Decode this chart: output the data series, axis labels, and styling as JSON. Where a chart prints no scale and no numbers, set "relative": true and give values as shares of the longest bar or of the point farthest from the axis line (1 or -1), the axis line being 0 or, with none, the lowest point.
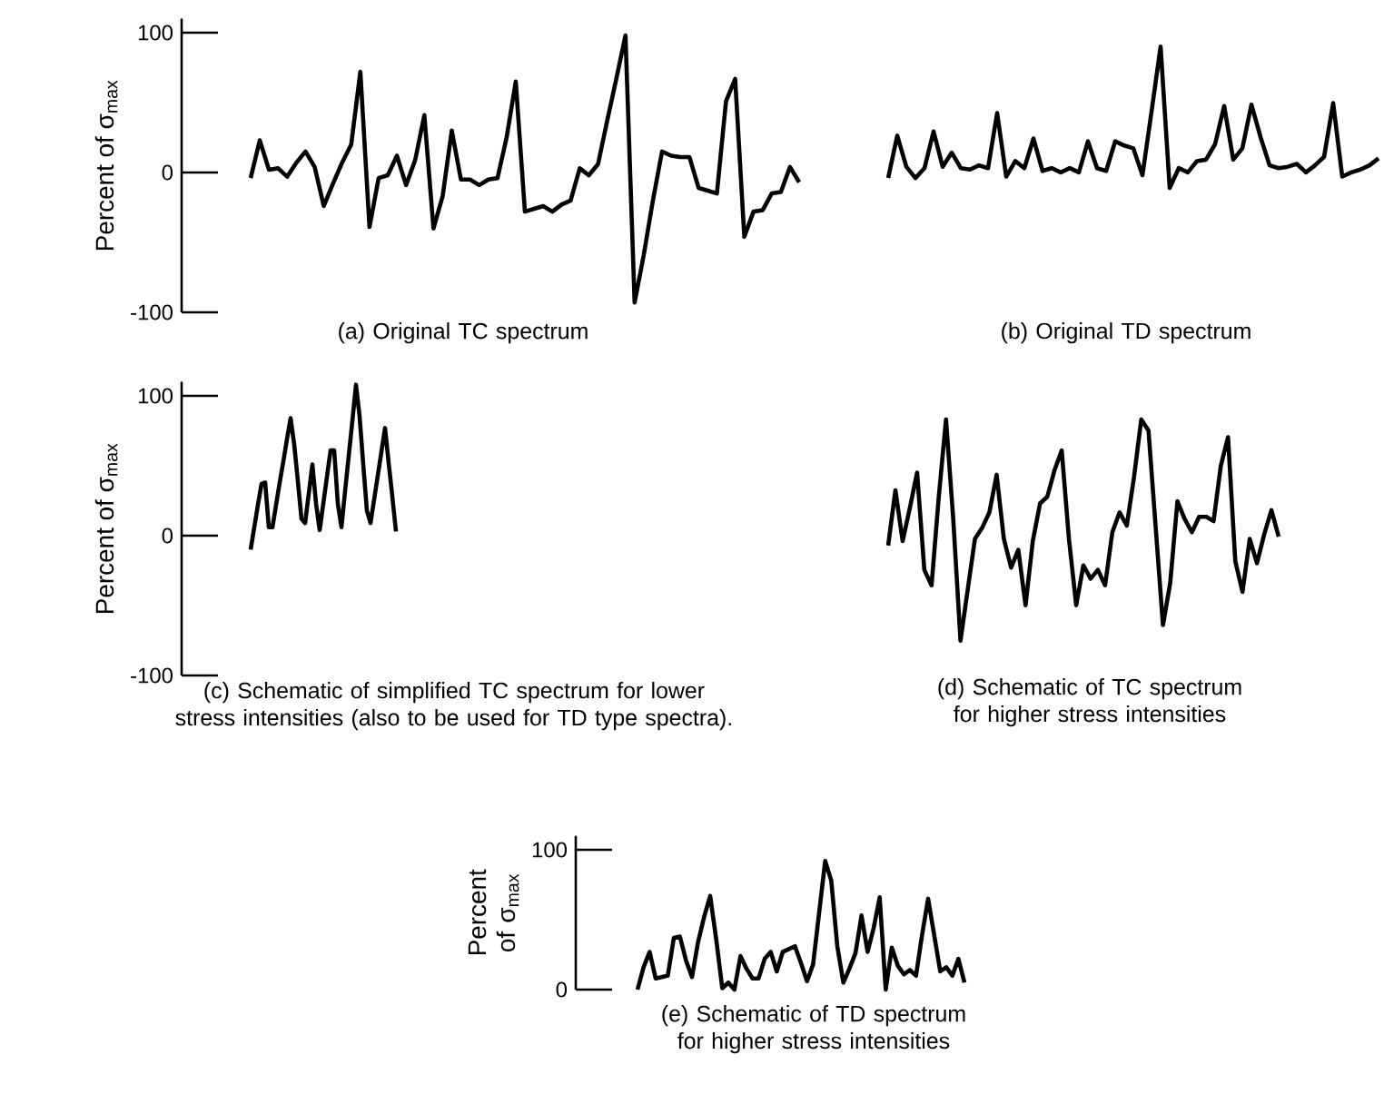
{
  "chart_data": [
    {
      "type": "line",
      "title": "(a) Original TC spectrum",
      "ylabel": "Percent of σ$_{max}$",
      "color": "#000000",
      "ylim": [
        -100,
        110
      ],
      "yticks": [
        -100,
        0,
        100
      ],
      "tick_labels": "y",
      "categories": [
        null,
        null,
        null,
        null,
        null,
        null,
        null,
        null,
        null,
        null,
        null,
        null,
        null,
        null,
        null,
        null,
        null,
        null,
        null,
        null,
        null,
        null,
        null,
        null,
        null,
        null,
        null,
        null,
        null,
        null,
        null,
        null,
        null,
        null,
        null,
        null,
        null,
        null,
        null,
        null,
        null,
        null,
        null,
        null,
        null,
        null,
        null,
        null,
        null,
        null,
        null,
        null,
        null,
        null,
        null,
        null,
        null,
        null,
        null,
        null,
        null
      ],
      "values": [
        -4,
        23,
        2,
        3,
        -3,
        7,
        15,
        4,
        -24,
        -8,
        7,
        20,
        72,
        -39,
        -4,
        -2,
        12,
        -9,
        9,
        41,
        -40,
        -17,
        30,
        -5,
        -5,
        -9,
        -5,
        -4,
        25,
        65,
        -28,
        -26,
        -24,
        -28,
        -23,
        -20,
        3,
        -2,
        6,
        37,
        67,
        98,
        -93,
        -59,
        -20,
        15,
        12,
        11,
        11,
        -11,
        -13,
        -15,
        51,
        67,
        -46,
        -28,
        -27,
        -15,
        -14,
        4,
        -7
      ]
    },
    {
      "type": "line",
      "title": "(b) Original TD spectrum",
      "color": "#000000",
      "relative": true,
      "categories": [
        null,
        null,
        null,
        null,
        null,
        null,
        null,
        null,
        null,
        null,
        null,
        null,
        null,
        null,
        null,
        null,
        null,
        null,
        null,
        null,
        null,
        null,
        null,
        null,
        null,
        null,
        null,
        null,
        null,
        null,
        null,
        null,
        null,
        null,
        null,
        null,
        null,
        null,
        null,
        null,
        null,
        null,
        null,
        null,
        null,
        null,
        null,
        null,
        null,
        null,
        null,
        null,
        null,
        null,
        null
      ],
      "values": [
        0.07,
        0.37,
        0.15,
        0.07,
        0.14,
        0.4,
        0.15,
        0.25,
        0.14,
        0.13,
        0.16,
        0.14,
        0.53,
        0.08,
        0.19,
        0.14,
        0.35,
        0.12,
        0.14,
        0.11,
        0.14,
        0.11,
        0.33,
        0.14,
        0.12,
        0.33,
        0.3,
        0.28,
        0.09,
        0.54,
        1,
        0,
        0.14,
        0.11,
        0.19,
        0.2,
        0.31,
        0.58,
        0.2,
        0.28,
        0.59,
        0.36,
        0.16,
        0.14,
        0.15,
        0.17,
        0.11,
        0.16,
        0.22,
        0.6,
        0.08,
        0.11,
        0.13,
        0.16,
        0.21
      ]
    },
    {
      "type": "line",
      "title": "(c) Schematic of simplified TC spectrum for lower stress intensities (also to be used for TD type spectra).",
      "ylabel": "Percent of σ$_{max}$",
      "color": "#000000",
      "ylim": [
        -100,
        110
      ],
      "yticks": [
        -100,
        0,
        100
      ],
      "tick_labels": "y",
      "categories": [
        null,
        null,
        null,
        null,
        null,
        null,
        null,
        null,
        null,
        null,
        null,
        null,
        null,
        null,
        null,
        null,
        null,
        null,
        null,
        null,
        null,
        null,
        null,
        null,
        null,
        null,
        null,
        null,
        null,
        null,
        null,
        null,
        null,
        null,
        null,
        null,
        null,
        null,
        null,
        null,
        null
      ],
      "values": [
        -10,
        6,
        22,
        37,
        38,
        6,
        6,
        22,
        38,
        53,
        69,
        84,
        65,
        39,
        12,
        9,
        30,
        51,
        23,
        4,
        23,
        42,
        61,
        61,
        23,
        6,
        32,
        57,
        82,
        108,
        85,
        51,
        18,
        9,
        26,
        43,
        60,
        77,
        52,
        28,
        3
      ]
    },
    {
      "type": "line",
      "title": "(d) Schematic of TC spectrum for higher stress intensities",
      "color": "#000000",
      "relative": true,
      "categories": [
        null,
        null,
        null,
        null,
        null,
        null,
        null,
        null,
        null,
        null,
        null,
        null,
        null,
        null,
        null,
        null,
        null,
        null,
        null,
        null,
        null,
        null,
        null,
        null,
        null,
        null,
        null,
        null,
        null,
        null,
        null,
        null,
        null,
        null,
        null,
        null,
        null,
        null,
        null,
        null,
        null,
        null,
        null,
        null,
        null,
        null,
        null,
        null,
        null,
        null,
        null,
        null,
        null,
        null,
        null
      ],
      "values": [
        0.43,
        0.68,
        0.45,
        0.6,
        0.76,
        0.32,
        0.25,
        0.65,
        1,
        0.55,
        0,
        0.23,
        0.46,
        0.51,
        0.58,
        0.75,
        0.46,
        0.33,
        0.41,
        0.16,
        0.45,
        0.62,
        0.65,
        0.77,
        0.86,
        0.46,
        0.16,
        0.34,
        0.28,
        0.32,
        0.25,
        0.49,
        0.58,
        0.52,
        0.74,
        1,
        0.95,
        0.51,
        0.07,
        0.26,
        0.63,
        0.55,
        0.49,
        0.56,
        0.56,
        0.54,
        0.79,
        0.92,
        0.36,
        0.22,
        0.46,
        0.35,
        0.48,
        0.59,
        0.47
      ]
    },
    {
      "type": "line",
      "title": "(e) Schematic of TD spectrum for higher stress intensities",
      "ylabel": "Percent of σ$_{max}$",
      "color": "#000000",
      "ylim": [
        0,
        110
      ],
      "yticks": [
        0,
        100
      ],
      "tick_labels": "y",
      "categories": [
        null,
        null,
        null,
        null,
        null,
        null,
        null,
        null,
        null,
        null,
        null,
        null,
        null,
        null,
        null,
        null,
        null,
        null,
        null,
        null,
        null,
        null,
        null,
        null,
        null,
        null,
        null,
        null,
        null,
        null,
        null,
        null,
        null,
        null,
        null,
        null,
        null,
        null,
        null,
        null,
        null,
        null,
        null,
        null,
        null,
        null,
        null,
        null,
        null,
        null,
        null,
        null,
        null,
        null,
        null
      ],
      "values": [
        0,
        16,
        27,
        8,
        9,
        10,
        37,
        38,
        21,
        9,
        34,
        52,
        67,
        36,
        1,
        5,
        0,
        24,
        15,
        8,
        8,
        22,
        27,
        13,
        27,
        29,
        31,
        19,
        6,
        18,
        55,
        92,
        78,
        31,
        5,
        15,
        26,
        53,
        27,
        44,
        66,
        0,
        30,
        17,
        11,
        14,
        10,
        39,
        65,
        39,
        13,
        16,
        10,
        22,
        5
      ]
    }
  ]
}
